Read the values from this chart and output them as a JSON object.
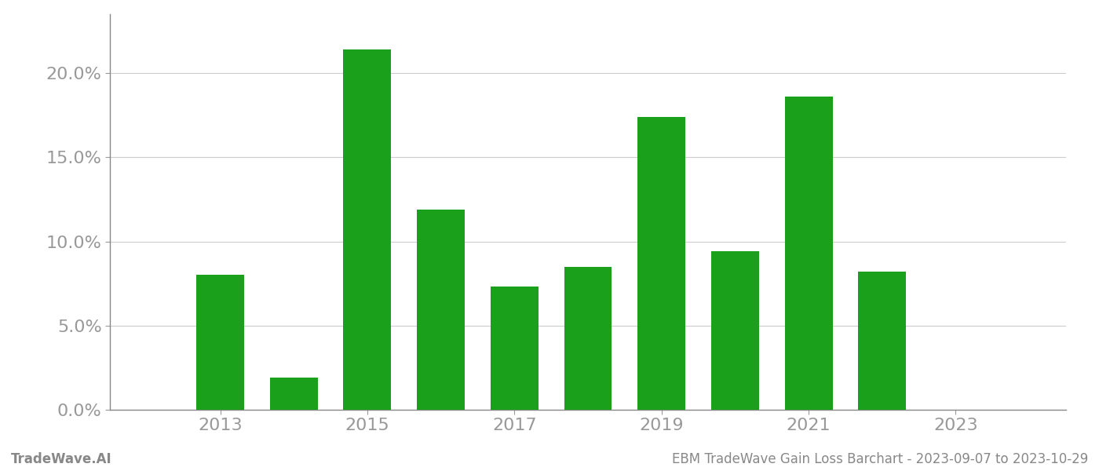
{
  "years": [
    2013,
    2014,
    2015,
    2016,
    2017,
    2018,
    2019,
    2020,
    2021,
    2022
  ],
  "values": [
    0.08,
    0.019,
    0.214,
    0.119,
    0.073,
    0.085,
    0.174,
    0.094,
    0.186,
    0.082
  ],
  "bar_color": "#1aa01a",
  "background_color": "#ffffff",
  "grid_color": "#cccccc",
  "axis_color": "#888888",
  "tick_label_color": "#999999",
  "yticks": [
    0.0,
    0.05,
    0.1,
    0.15,
    0.2
  ],
  "ylim": [
    0.0,
    0.235
  ],
  "xlim": [
    2011.5,
    2024.5
  ],
  "xticks": [
    2013,
    2015,
    2017,
    2019,
    2021,
    2023
  ],
  "footer_left": "TradeWave.AI",
  "footer_right": "EBM TradeWave Gain Loss Barchart - 2023-09-07 to 2023-10-29",
  "footer_color": "#888888",
  "footer_fontsize": 12,
  "tick_fontsize": 16,
  "bar_width": 0.65
}
